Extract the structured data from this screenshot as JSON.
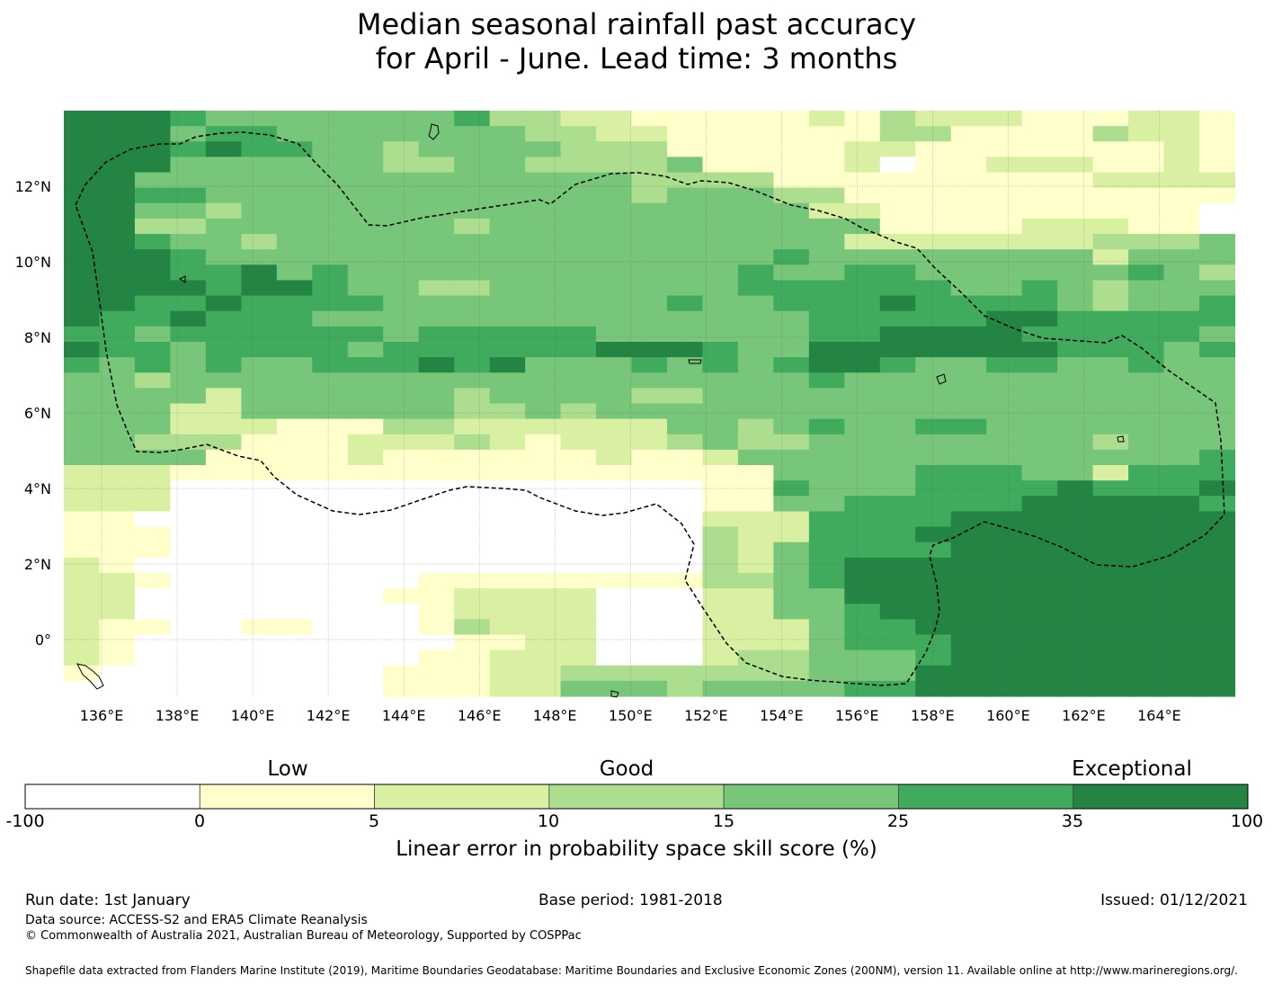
{
  "title": {
    "line1": "Median seasonal rainfall past accuracy",
    "line2": "for April - June. Lead time: 3 months"
  },
  "map": {
    "lon_range": [
      135,
      166
    ],
    "lat_range": [
      -1.5,
      14
    ],
    "lon_ticks": [
      "136°E",
      "138°E",
      "140°E",
      "142°E",
      "144°E",
      "146°E",
      "148°E",
      "150°E",
      "152°E",
      "154°E",
      "156°E",
      "158°E",
      "160°E",
      "162°E",
      "164°E"
    ],
    "lon_tick_values": [
      136,
      138,
      140,
      142,
      144,
      146,
      148,
      150,
      152,
      154,
      156,
      158,
      160,
      162,
      164
    ],
    "lat_ticks": [
      "12°N",
      "10°N",
      "8°N",
      "6°N",
      "4°N",
      "2°N",
      "0°"
    ],
    "lat_tick_values": [
      12,
      10,
      8,
      6,
      4,
      2,
      0
    ],
    "cell_size_deg": 0.833,
    "grid_codes": "0=below 0 (white), 1=0-5, 2=5-10, 3=10-15, 4=15-25, 5=25-35, 6=35-100; rows listed from north (top) to south",
    "grid": [
      "666544444445332211111213222111221",
      "666455444444433221111113311113221",
      "666565544344443331111122111111121",
      "666444444334433334111120112221121",
      "664444444444444433331111111112222",
      "665544444444444434443311111111111",
      "664434444444444444444221111111110",
      "663344444443444444444441111222110",
      "665443444444444444444422222223334",
      "666544444444444444445444444442444",
      "666556454444444444454455444444543",
      "666656654433444444455555544543444",
      "665565555444444445445556555543445",
      "655655544444444444444555556655555",
      "554555555455555444444556666555554",
      "655455554555555666544666666655545",
      "545454455565644454545665445544544",
      "443444444444444444444544444444444",
      "444424444443444433444444444444444",
      "444224444443343444444444444444444",
      "444222111332222224434544554444444",
      "443331112223212223433444444443444",
      "444411112111111211244444444444445",
      "222111111111111111114444555442555",
      "222000000000000000115444555565556",
      "222000000000000000114455555666665",
      "110000000000000000222555566666666",
      "111000000000000000322555666666666",
      "111000000000000000324555566666666",
      "210000000000000000324566666666666",
      "221000000011111111334566666666666",
      "220000000112222000224466666666666",
      "220000000012222000224456666666666",
      "211001100013222000222455666666666",
      "210000000001122000222455566666666",
      "210000000011222000233444566666666",
      "100000000111223333333444666666666",
      "000000000111224443444455666666666"
    ]
  },
  "colorbar": {
    "categories": [
      "Low",
      "Good",
      "Exceptional"
    ],
    "ticks": [
      "-100",
      "0",
      "5",
      "10",
      "15",
      "25",
      "35",
      "100"
    ],
    "colors": [
      "#ffffff",
      "#ffffcc",
      "#d9f0a3",
      "#addd8e",
      "#78c679",
      "#41ab5d",
      "#238443"
    ],
    "label": "Linear error in probability space skill score (%)"
  },
  "footer": {
    "run_date": "Run date: 1st January",
    "base_period": "Base period: 1981-2018",
    "issued": "Issued: 01/12/2021",
    "data_source": "Data source: ACCESS-S2 and ERA5 Climate Reanalysis",
    "copyright": "© Commonwealth of Australia 2021, Australian Bureau of Meteorology, Supported by COSPPac",
    "shapefile": "Shapefile data extracted from Flanders Marine Institute (2019), Maritime Boundaries Geodatabase: Maritime Boundaries and Exclusive Economic Zones (200NM), version 11. Available online at http://www.marineregions.org/."
  }
}
